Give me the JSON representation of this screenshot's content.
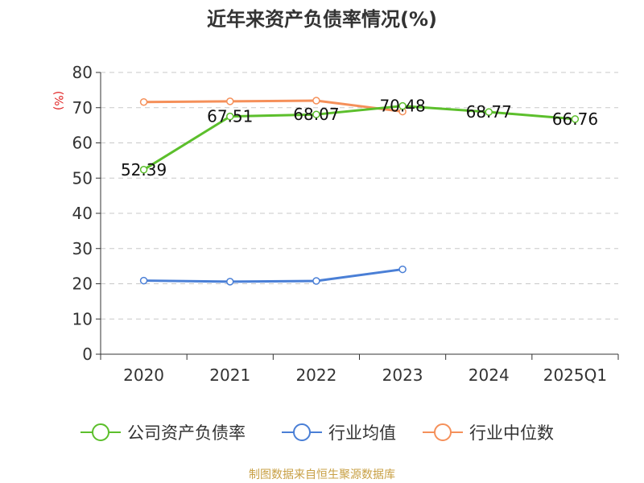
{
  "chart_data": {
    "type": "line",
    "title": "近年来资产负债率情况(%)",
    "ylabel": "(%)",
    "xlabel": "",
    "categories": [
      "2020",
      "2021",
      "2022",
      "2023",
      "2024",
      "2025Q1"
    ],
    "ylim": [
      0,
      80
    ],
    "yticks": [
      0,
      10,
      20,
      30,
      40,
      50,
      60,
      70,
      80
    ],
    "grid": true,
    "legend_position": "bottom",
    "series": [
      {
        "name": "公司资产负债率",
        "color": "#5cbf2c",
        "values": [
          52.39,
          67.51,
          68.07,
          70.48,
          68.77,
          66.76
        ],
        "labels": [
          "52.39",
          "67.51",
          "68.07",
          "70.48",
          "68.77",
          "66.76"
        ]
      },
      {
        "name": "行业均值",
        "color": "#4a7fd6",
        "values": [
          20.9,
          20.6,
          20.8,
          24.1,
          null,
          null
        ]
      },
      {
        "name": "行业中位数",
        "color": "#f5905a",
        "values": [
          71.6,
          71.8,
          72.0,
          68.9,
          null,
          null
        ]
      }
    ]
  },
  "source_note": "制图数据来自恒生聚源数据库"
}
